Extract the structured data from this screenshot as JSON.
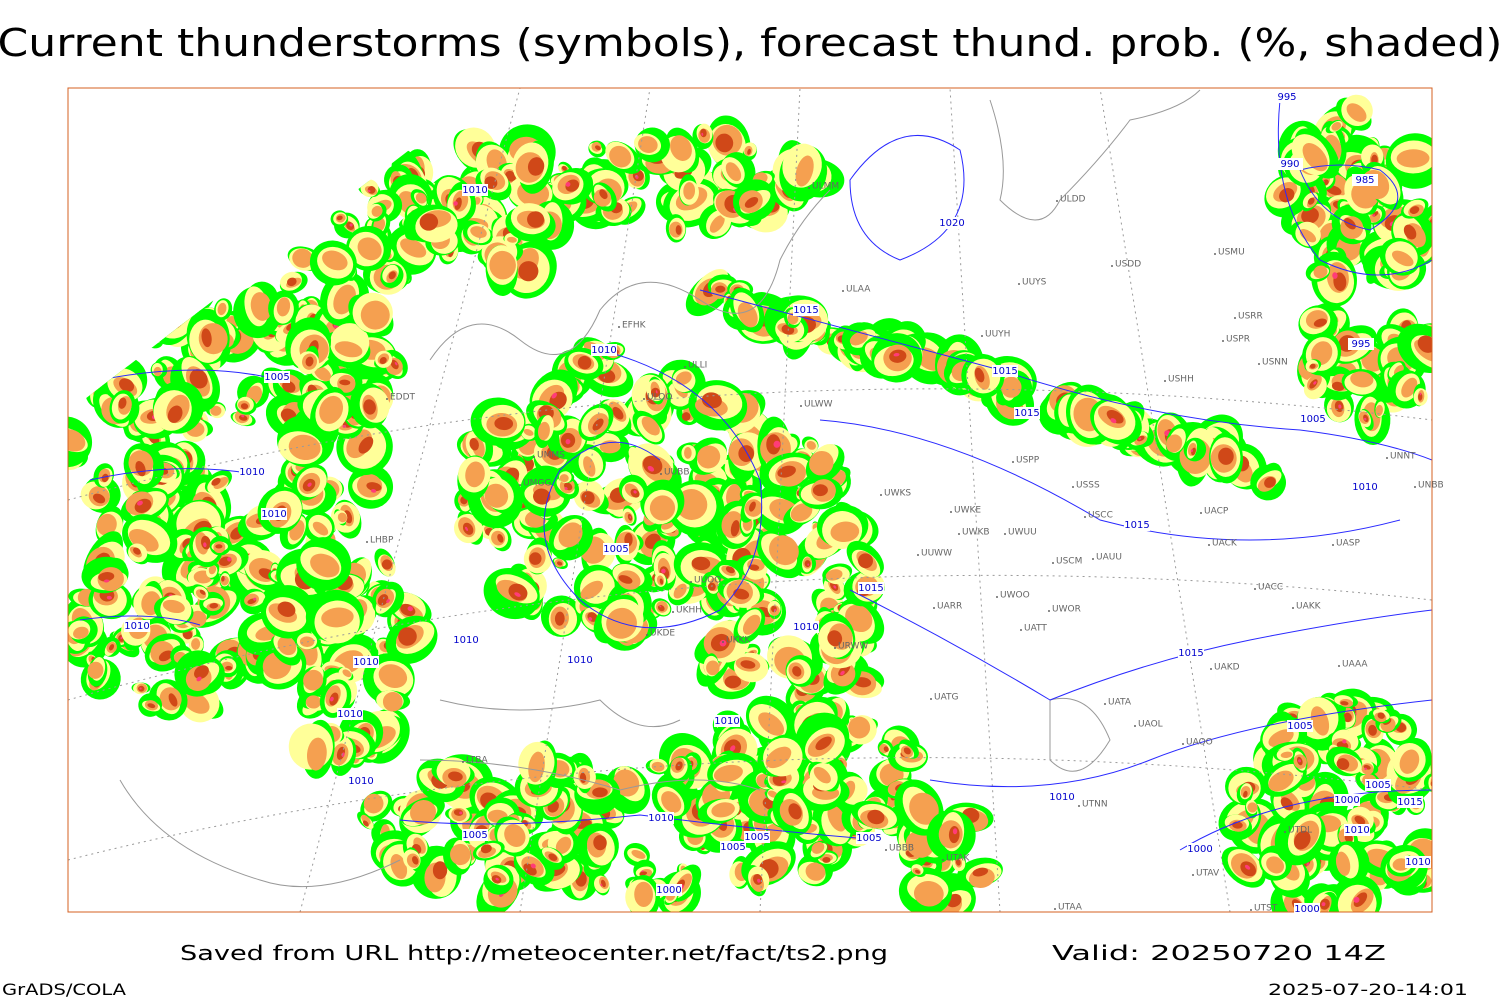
{
  "header": {
    "title": "Current thunderstorms (symbols), forecast thund. prob. (%, shaded)"
  },
  "footer": {
    "source": "Saved from URL http://meteocenter.net/fact/ts2.png",
    "valid": "Valid: 20250720 14Z",
    "software": "GrADS/COLA",
    "timestamp": "2025-07-20-14:01"
  },
  "map": {
    "isobar_labels": [
      "1010",
      "1005",
      "1010",
      "1010",
      "1010",
      "1010",
      "1010",
      "1010",
      "1005",
      "1010",
      "1005",
      "1005",
      "1000",
      "1010",
      "1005",
      "1010",
      "1010",
      "1010",
      "1010",
      "1015",
      "1005",
      "1020",
      "1015",
      "1015",
      "1015",
      "1015",
      "1015",
      "1010",
      "1010",
      "1005",
      "995",
      "990",
      "985",
      "995",
      "1005",
      "1005",
      "1000",
      "1015",
      "1010",
      "1010",
      "1000",
      "1000"
    ],
    "station_labels": [
      "ULMM",
      "ULDD",
      "USDD",
      "USMU",
      "ULAA",
      "UUYS",
      "EFHK",
      "UUYH",
      "USRR",
      "USPR",
      "USNN",
      "ULLI",
      "ULOO",
      "ULWW",
      "USHH",
      "EDDT",
      "UMMS",
      "UUBB",
      "UMGG",
      "USSS",
      "USPP",
      "UWKS",
      "UWKE",
      "UWKB",
      "UWUU",
      "USCC",
      "UACP",
      "UACK",
      "UASP",
      "UNBB",
      "UNNT",
      "UUWW",
      "USCM",
      "UAUU",
      "UACC",
      "UAKK",
      "UWOO",
      "UWOR",
      "UARR",
      "UATT",
      "UAKD",
      "UATG",
      "UATA",
      "UAOL",
      "UAOO",
      "UTNN",
      "UBBB",
      "UTAK",
      "UTAA",
      "UTST",
      "UTAV",
      "UTDL",
      "LHBP",
      "UKHH",
      "UKDE",
      "UUOO",
      "UKKK",
      "LTBA",
      "URWW",
      "UAAA"
    ]
  }
}
